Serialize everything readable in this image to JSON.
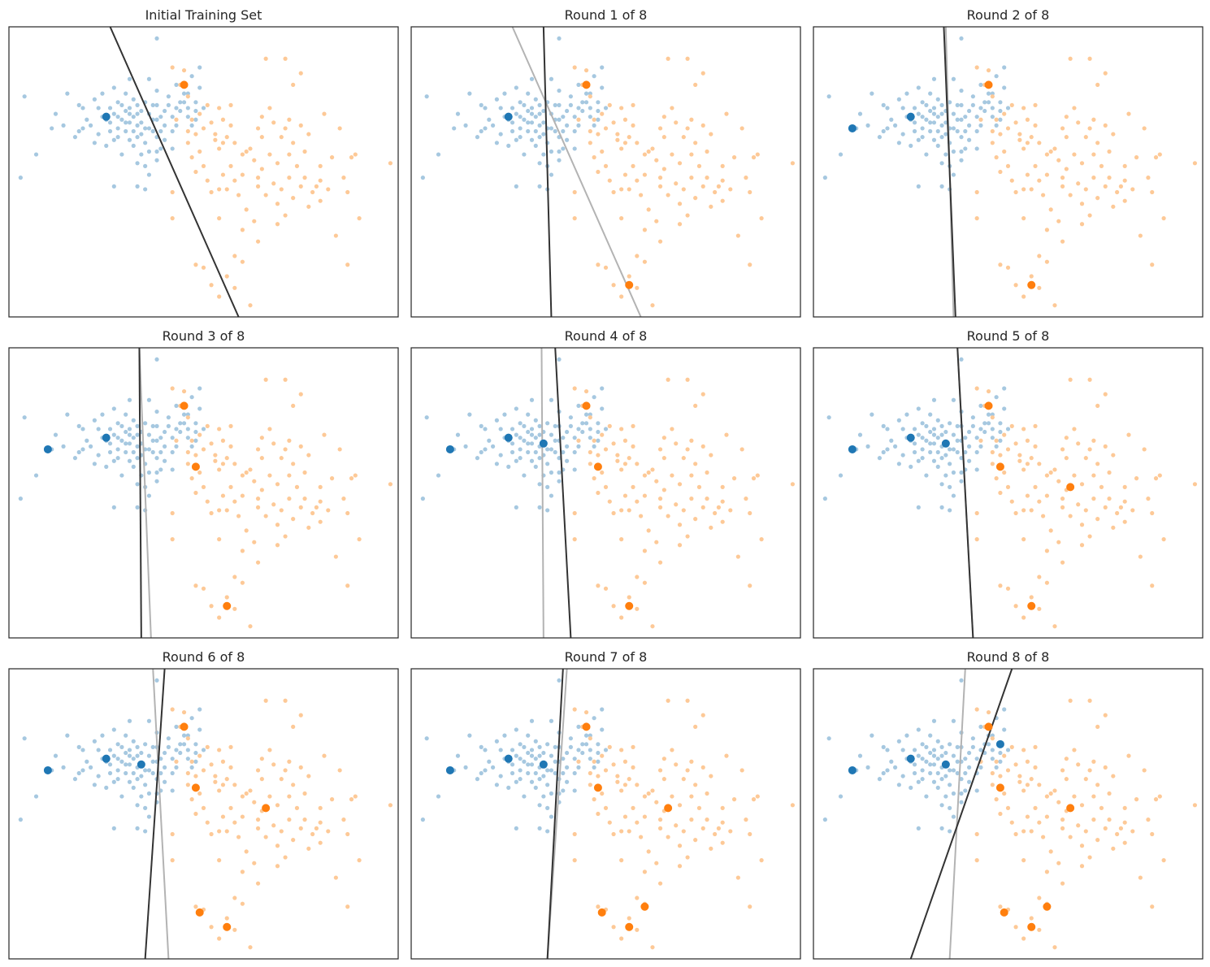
{
  "figure": {
    "rows": 3,
    "cols": 3,
    "colors": {
      "class0_bg": "#a6c8e0",
      "class1_bg": "#fdc997",
      "class0_labeled": "#1f77b4",
      "class1_labeled": "#ff7f0e",
      "current_boundary": "#333333",
      "previous_boundary": "#b3b3b3",
      "frame": "#262626"
    }
  },
  "chart_data": {
    "type": "scatter",
    "xlim": [
      0,
      100
    ],
    "ylim": [
      0,
      100
    ],
    "grid": false,
    "legend": "none",
    "background_points": {
      "class_0": [
        [
          3,
          48
        ],
        [
          4,
          76
        ],
        [
          7,
          56
        ],
        [
          11,
          65
        ],
        [
          12,
          70
        ],
        [
          14,
          66
        ],
        [
          15,
          77
        ],
        [
          17,
          62
        ],
        [
          18,
          73
        ],
        [
          18,
          64
        ],
        [
          19,
          72
        ],
        [
          19,
          65
        ],
        [
          20,
          68
        ],
        [
          21,
          66
        ],
        [
          22,
          75
        ],
        [
          22,
          60
        ],
        [
          23,
          72
        ],
        [
          23,
          63
        ],
        [
          24,
          69
        ],
        [
          24,
          77
        ],
        [
          25,
          68
        ],
        [
          25,
          59
        ],
        [
          26,
          72
        ],
        [
          26,
          67
        ],
        [
          26,
          64
        ],
        [
          27,
          61
        ],
        [
          27,
          45
        ],
        [
          27,
          79
        ],
        [
          27,
          70
        ],
        [
          28,
          74
        ],
        [
          28,
          69
        ],
        [
          28,
          65
        ],
        [
          28,
          62
        ],
        [
          29,
          73
        ],
        [
          29,
          68
        ],
        [
          29,
          56
        ],
        [
          30,
          77
        ],
        [
          30,
          71
        ],
        [
          30,
          67
        ],
        [
          30,
          64
        ],
        [
          31,
          72
        ],
        [
          31,
          70
        ],
        [
          31,
          67
        ],
        [
          31,
          61
        ],
        [
          31,
          82
        ],
        [
          32,
          75
        ],
        [
          32,
          69
        ],
        [
          32,
          64
        ],
        [
          32,
          59
        ],
        [
          33,
          73
        ],
        [
          33,
          66
        ],
        [
          33,
          62
        ],
        [
          33,
          53
        ],
        [
          33,
          45
        ],
        [
          34,
          71
        ],
        [
          34,
          67
        ],
        [
          34,
          63
        ],
        [
          34,
          56
        ],
        [
          35,
          74
        ],
        [
          35,
          65
        ],
        [
          35,
          60
        ],
        [
          35,
          52
        ],
        [
          35,
          44
        ],
        [
          36,
          70
        ],
        [
          36,
          65
        ],
        [
          36,
          57
        ],
        [
          36,
          49
        ],
        [
          37,
          73
        ],
        [
          37,
          68
        ],
        [
          37,
          64
        ],
        [
          38,
          78
        ],
        [
          38,
          73
        ],
        [
          38,
          68
        ],
        [
          38,
          62
        ],
        [
          38,
          54
        ],
        [
          39,
          69
        ],
        [
          39,
          64
        ],
        [
          39,
          58
        ],
        [
          40,
          71
        ],
        [
          40,
          66
        ],
        [
          40,
          61
        ],
        [
          41,
          76
        ],
        [
          41,
          73
        ],
        [
          42,
          69
        ],
        [
          42,
          64
        ],
        [
          42,
          58
        ],
        [
          43,
          80
        ],
        [
          43,
          72
        ],
        [
          43,
          66
        ],
        [
          44,
          74
        ],
        [
          44,
          71
        ],
        [
          45,
          74
        ],
        [
          45,
          77
        ],
        [
          46,
          72
        ],
        [
          46,
          69
        ],
        [
          46,
          77
        ],
        [
          47,
          66
        ],
        [
          47,
          83
        ],
        [
          48,
          71
        ],
        [
          48,
          68
        ],
        [
          48,
          74
        ],
        [
          49,
          79
        ],
        [
          49,
          86
        ],
        [
          50,
          72
        ],
        [
          38,
          96
        ],
        [
          33,
          70
        ],
        [
          36,
          82
        ],
        [
          38,
          57
        ]
      ],
      "class_1": [
        [
          42,
          86
        ],
        [
          45,
          85
        ],
        [
          44,
          80
        ],
        [
          46,
          76
        ],
        [
          47,
          68
        ],
        [
          48,
          63
        ],
        [
          49,
          70
        ],
        [
          50,
          65
        ],
        [
          51,
          73
        ],
        [
          52,
          67
        ],
        [
          53,
          63
        ],
        [
          54,
          72
        ],
        [
          54,
          58
        ],
        [
          55,
          68
        ],
        [
          56,
          62
        ],
        [
          57,
          66
        ],
        [
          58,
          60
        ],
        [
          46,
          60
        ],
        [
          47,
          55
        ],
        [
          48,
          50
        ],
        [
          49,
          57
        ],
        [
          50,
          52
        ],
        [
          51,
          47
        ],
        [
          52,
          43
        ],
        [
          53,
          61
        ],
        [
          54,
          44
        ],
        [
          55,
          49
        ],
        [
          56,
          44
        ],
        [
          57,
          52
        ],
        [
          58,
          47
        ],
        [
          59,
          42
        ],
        [
          60,
          56
        ],
        [
          60,
          49
        ],
        [
          61,
          37
        ],
        [
          62,
          58
        ],
        [
          63,
          54
        ],
        [
          63,
          33
        ],
        [
          64,
          65
        ],
        [
          64,
          45
        ],
        [
          65,
          51
        ],
        [
          65,
          62
        ],
        [
          66,
          42
        ],
        [
          67,
          56
        ],
        [
          67,
          72
        ],
        [
          68,
          46
        ],
        [
          68,
          67
        ],
        [
          69,
          53
        ],
        [
          69,
          39
        ],
        [
          70,
          62
        ],
        [
          70,
          44
        ],
        [
          71,
          65
        ],
        [
          71,
          35
        ],
        [
          72,
          56
        ],
        [
          72,
          48
        ],
        [
          72,
          68
        ],
        [
          73,
          60
        ],
        [
          73,
          41
        ],
        [
          74,
          52
        ],
        [
          75,
          66
        ],
        [
          75,
          45
        ],
        [
          76,
          57
        ],
        [
          76,
          48
        ],
        [
          77,
          63
        ],
        [
          77,
          38
        ],
        [
          78,
          43
        ],
        [
          79,
          45
        ],
        [
          80,
          52
        ],
        [
          80,
          40
        ],
        [
          81,
          70
        ],
        [
          82,
          44
        ],
        [
          83,
          55
        ],
        [
          84,
          28
        ],
        [
          85,
          65
        ],
        [
          86,
          48
        ],
        [
          87,
          43
        ],
        [
          88,
          55
        ],
        [
          89,
          56
        ],
        [
          90,
          34
        ],
        [
          98,
          53
        ],
        [
          66,
          89
        ],
        [
          71,
          89
        ],
        [
          73,
          80
        ],
        [
          75,
          84
        ],
        [
          69,
          32
        ],
        [
          64,
          26
        ],
        [
          60,
          30
        ],
        [
          54,
          34
        ],
        [
          42,
          34
        ],
        [
          42,
          43
        ],
        [
          52,
          11
        ],
        [
          54,
          7
        ],
        [
          56,
          14
        ],
        [
          58,
          21
        ],
        [
          60,
          19
        ],
        [
          62,
          4
        ],
        [
          58,
          10
        ],
        [
          50,
          17
        ],
        [
          48,
          18
        ],
        [
          64,
          48
        ],
        [
          46,
          64
        ],
        [
          43,
          68
        ],
        [
          65,
          69
        ],
        [
          57,
          73
        ],
        [
          61,
          57
        ],
        [
          80,
          47
        ],
        [
          87,
          18
        ],
        [
          55,
          60
        ]
      ]
    },
    "panels": [
      {
        "title": "Initial Training Set",
        "boundary": [
          [
            26,
            100
          ],
          [
            59,
            0
          ]
        ],
        "previous_boundary": null,
        "labeled_class_0": [
          [
            25,
            69
          ]
        ],
        "labeled_class_1": [
          [
            45,
            80
          ]
        ]
      },
      {
        "title": "Round 1 of 8",
        "boundary": [
          [
            34,
            100
          ],
          [
            36,
            0
          ]
        ],
        "previous_boundary": [
          [
            26,
            100
          ],
          [
            59,
            0
          ]
        ],
        "labeled_class_0": [
          [
            25,
            69
          ]
        ],
        "labeled_class_1": [
          [
            45,
            80
          ],
          [
            56,
            11
          ]
        ]
      },
      {
        "title": "Round 2 of 8",
        "boundary": [
          [
            33.5,
            100
          ],
          [
            36.5,
            0
          ]
        ],
        "previous_boundary": [
          [
            34,
            100
          ],
          [
            36,
            0
          ]
        ],
        "labeled_class_0": [
          [
            25,
            69
          ],
          [
            10,
            65
          ]
        ],
        "labeled_class_1": [
          [
            45,
            80
          ],
          [
            56,
            11
          ]
        ]
      },
      {
        "title": "Round 3 of 8",
        "boundary": [
          [
            33.5,
            100
          ],
          [
            34,
            0
          ]
        ],
        "previous_boundary": [
          [
            33.5,
            100
          ],
          [
            36.5,
            0
          ]
        ],
        "labeled_class_0": [
          [
            25,
            69
          ],
          [
            10,
            65
          ]
        ],
        "labeled_class_1": [
          [
            45,
            80
          ],
          [
            48,
            59
          ],
          [
            56,
            11
          ]
        ]
      },
      {
        "title": "Round 4 of 8",
        "boundary": [
          [
            37,
            100
          ],
          [
            41,
            0
          ]
        ],
        "previous_boundary": [
          [
            33.5,
            100
          ],
          [
            34,
            0
          ]
        ],
        "labeled_class_0": [
          [
            25,
            69
          ],
          [
            10,
            65
          ],
          [
            34,
            67
          ]
        ],
        "labeled_class_1": [
          [
            45,
            80
          ],
          [
            48,
            59
          ],
          [
            56,
            11
          ]
        ]
      },
      {
        "title": "Round 5 of 8",
        "boundary": [
          [
            37,
            100
          ],
          [
            41,
            0
          ]
        ],
        "previous_boundary": [
          [
            37,
            100
          ],
          [
            41,
            0
          ]
        ],
        "labeled_class_0": [
          [
            25,
            69
          ],
          [
            10,
            65
          ],
          [
            34,
            67
          ]
        ],
        "labeled_class_1": [
          [
            45,
            80
          ],
          [
            48,
            59
          ],
          [
            66,
            52
          ],
          [
            56,
            11
          ]
        ]
      },
      {
        "title": "Round 6 of 8",
        "boundary": [
          [
            40,
            100
          ],
          [
            35,
            0
          ]
        ],
        "previous_boundary": [
          [
            37,
            100
          ],
          [
            41,
            0
          ]
        ],
        "labeled_class_0": [
          [
            25,
            69
          ],
          [
            10,
            65
          ],
          [
            34,
            67
          ]
        ],
        "labeled_class_1": [
          [
            45,
            80
          ],
          [
            48,
            59
          ],
          [
            66,
            52
          ],
          [
            49,
            16
          ],
          [
            56,
            11
          ]
        ]
      },
      {
        "title": "Round 7 of 8",
        "boundary": [
          [
            39,
            100
          ],
          [
            35,
            0
          ]
        ],
        "previous_boundary": [
          [
            40,
            100
          ],
          [
            35,
            0
          ]
        ],
        "labeled_class_0": [
          [
            25,
            69
          ],
          [
            10,
            65
          ],
          [
            34,
            67
          ]
        ],
        "labeled_class_1": [
          [
            45,
            80
          ],
          [
            48,
            59
          ],
          [
            66,
            52
          ],
          [
            49,
            16
          ],
          [
            56,
            11
          ],
          [
            60,
            18
          ]
        ]
      },
      {
        "title": "Round 8 of 8",
        "boundary": [
          [
            51,
            100
          ],
          [
            25,
            0
          ]
        ],
        "previous_boundary": [
          [
            39,
            100
          ],
          [
            35,
            0
          ]
        ],
        "labeled_class_0": [
          [
            25,
            69
          ],
          [
            10,
            65
          ],
          [
            34,
            67
          ],
          [
            48,
            74
          ]
        ],
        "labeled_class_1": [
          [
            45,
            80
          ],
          [
            48,
            59
          ],
          [
            66,
            52
          ],
          [
            49,
            16
          ],
          [
            56,
            11
          ],
          [
            60,
            18
          ]
        ]
      }
    ]
  }
}
